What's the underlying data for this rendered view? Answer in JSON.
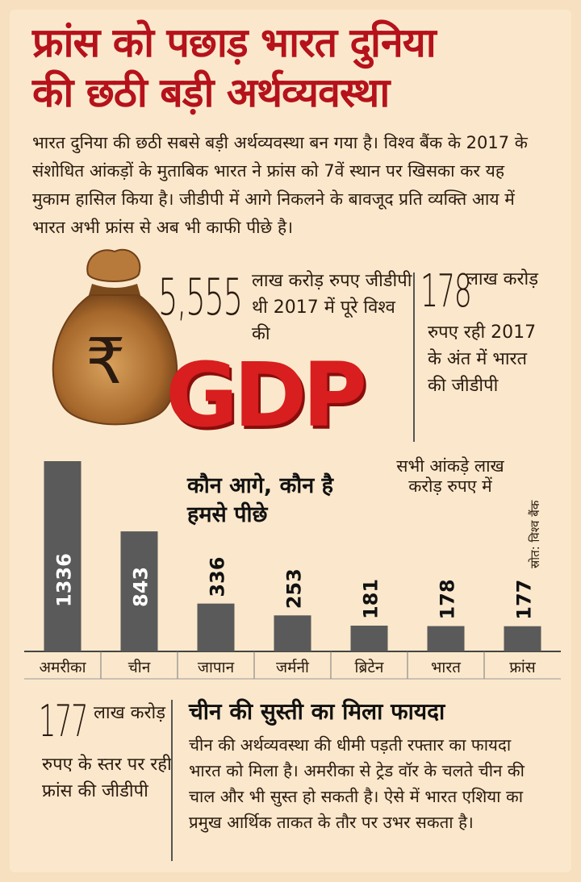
{
  "headline": {
    "line1": "फ्रांस को पछाड़ भारत दुनिया",
    "line2": "की छठी बड़ी अर्थव्यवस्था"
  },
  "intro_text": "भारत दुनिया की छठी सबसे बड़ी अर्थव्यवस्था बन गया है। विश्व बैंक के 2017 के संशोधित आंकड़ों के मुताबिक भारत ने फ्रांस को 7वें स्थान पर खिसका कर यह मुकाम हासिल किया है। जीडीपी में आगे निकलने के बावजूद प्रति व्यक्ति आय में भारत अभी फ्रांस से अब भी काफी पीछे है।",
  "gdp_graphic": {
    "rupee_symbol": "₹",
    "word": "GDP"
  },
  "world_stat": {
    "value": "5,555",
    "text": "लाख करोड़ रुपए जीडीपी थी 2017 में पूरे विश्व की"
  },
  "india_stat": {
    "value": "178",
    "text_top": "लाख करोड़",
    "text_bottom": "रुपए रही 2017 के अंत में भारत की जीडीपी"
  },
  "france_stat": {
    "value": "177",
    "text_top": "लाख करोड़",
    "text_bottom": "रुपए के स्तर पर रही फ्रांस की जीडीपी"
  },
  "chart_title": "कौन आगे, कौन है हमसे पीछे",
  "chart_note": "सभी आंकड़े लाख करोड़ रुपए में",
  "source": "स्रोत: विश्व बैंक",
  "chart_data": {
    "type": "bar",
    "title": "कौन आगे, कौन है हमसे पीछे",
    "note": "सभी आंकड़े लाख करोड़ रुपए में",
    "categories": [
      "अमरीका",
      "चीन",
      "जापान",
      "जर्मनी",
      "ब्रिटेन",
      "भारत",
      "फ्रांस"
    ],
    "values": [
      1336,
      843,
      336,
      253,
      181,
      178,
      177
    ],
    "labels": [
      "1336",
      "843",
      "336",
      "253",
      "181",
      "178",
      "177"
    ],
    "ylim": [
      0,
      1336
    ],
    "grid": false,
    "bar_color": "#5a5a5a"
  },
  "china_section": {
    "title": "चीन की सुस्ती का मिला फायदा",
    "text": "चीन की अर्थव्यवस्था की धीमी पड़ती रफ्तार का फायदा भारत को मिला है। अमरीका से ट्रेड वॉर के चलते चीन की चाल और भी सुस्त हो सकती है। ऐसे में भारत एशिया का प्रमुख आर्थिक ताकत के तौर पर उभर सकता है।"
  },
  "colors": {
    "background": "#fbe8cc",
    "headline": "#b5121b",
    "gdp": "#d81e1e",
    "bars": "#5a5a5a"
  }
}
